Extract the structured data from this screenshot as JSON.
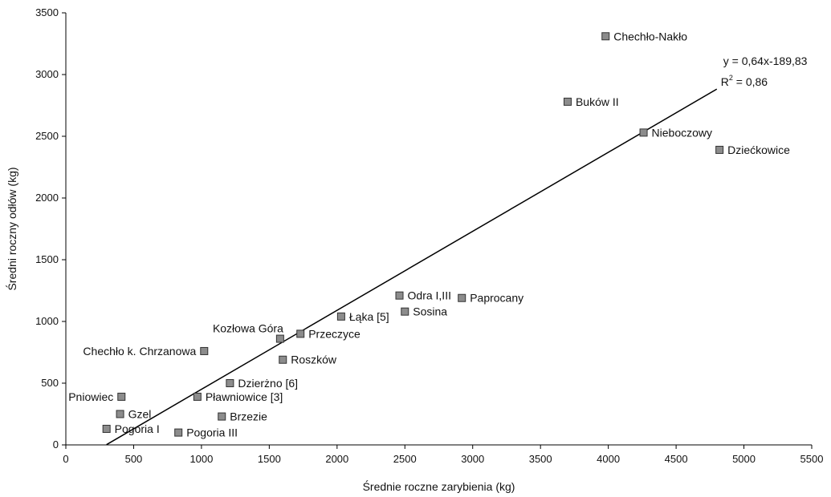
{
  "chart_data": {
    "type": "scatter",
    "title": "",
    "xlabel": "Średnie roczne zarybienia (kg)",
    "ylabel": "Średni roczny odłów (kg)",
    "xlim": [
      0,
      5500
    ],
    "ylim": [
      0,
      3500
    ],
    "xticks": [
      0,
      500,
      1000,
      1500,
      2000,
      2500,
      3000,
      3500,
      4000,
      4500,
      5000,
      5500
    ],
    "yticks": [
      0,
      500,
      1000,
      1500,
      2000,
      2500,
      3000,
      3500
    ],
    "grid": false,
    "marker_color": "#8c8c8c",
    "points": [
      {
        "name": "Chechło-Nakło",
        "x": 3980,
        "y": 3310,
        "label_side": "right"
      },
      {
        "name": "Buków II",
        "x": 3700,
        "y": 2780,
        "label_side": "right"
      },
      {
        "name": "Nieboczowy",
        "x": 4260,
        "y": 2530,
        "label_side": "right"
      },
      {
        "name": "Dziećkowice",
        "x": 4820,
        "y": 2390,
        "label_side": "right"
      },
      {
        "name": "Odra I,III",
        "x": 2460,
        "y": 1210,
        "label_side": "right"
      },
      {
        "name": "Paprocany",
        "x": 2920,
        "y": 1190,
        "label_side": "right"
      },
      {
        "name": "Sosina",
        "x": 2500,
        "y": 1080,
        "label_side": "right"
      },
      {
        "name": "Łąka [5]",
        "x": 2030,
        "y": 1040,
        "label_side": "right"
      },
      {
        "name": "Przeczyce",
        "x": 1730,
        "y": 900,
        "label_side": "right"
      },
      {
        "name": "Kozłowa Góra",
        "x": 1580,
        "y": 860,
        "label_side": "above-left"
      },
      {
        "name": "Chechło k. Chrzanowa",
        "x": 1020,
        "y": 760,
        "label_side": "left"
      },
      {
        "name": "Roszków",
        "x": 1600,
        "y": 690,
        "label_side": "right"
      },
      {
        "name": "Dzierżno [6]",
        "x": 1210,
        "y": 500,
        "label_side": "right"
      },
      {
        "name": "Pniowiec",
        "x": 410,
        "y": 390,
        "label_side": "left"
      },
      {
        "name": "Pławniowice [3]",
        "x": 970,
        "y": 390,
        "label_side": "right"
      },
      {
        "name": "Gzel",
        "x": 400,
        "y": 250,
        "label_side": "right"
      },
      {
        "name": "Brzezie",
        "x": 1150,
        "y": 230,
        "label_side": "right"
      },
      {
        "name": "Pogoria I",
        "x": 300,
        "y": 130,
        "label_side": "right"
      },
      {
        "name": "Pogoria III",
        "x": 830,
        "y": 100,
        "label_side": "right"
      }
    ],
    "trendline": {
      "slope": 0.64,
      "intercept": -189.83,
      "x_range": [
        300,
        4800
      ],
      "equation_text": "y = 0,64x-189,83",
      "r2_prefix": "R",
      "r2_sup": "2",
      "r2_value": " = 0,86"
    }
  }
}
